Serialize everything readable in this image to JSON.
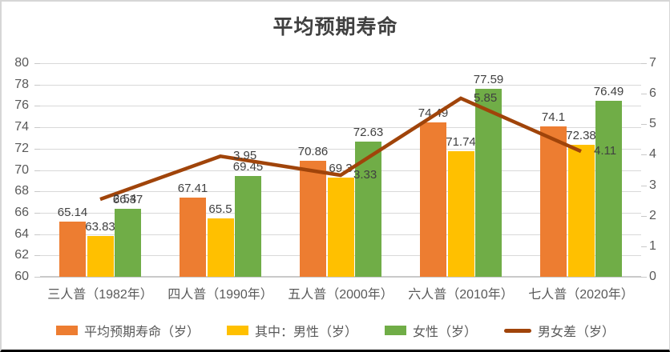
{
  "title": "平均预期寿命",
  "chart_data": {
    "type": "combo",
    "title": "平均预期寿命",
    "categories": [
      "三人普（1982年）",
      "四人普（1990年）",
      "五人普（2000年）",
      "六人普（2010年）",
      "七人普（2020年）"
    ],
    "series": [
      {
        "id": "avg-life",
        "name": "平均预期寿命（岁）",
        "type": "bar",
        "axis": "left",
        "color": "#ED7D31",
        "values": [
          65.14,
          67.41,
          70.86,
          74.49,
          74.1
        ],
        "labels": [
          "65.14",
          "67.41",
          "70.86",
          "74.49",
          "74.1"
        ]
      },
      {
        "id": "male",
        "name": "其中：男性（岁）",
        "type": "bar",
        "axis": "left",
        "color": "#FFC000",
        "values": [
          63.83,
          65.5,
          69.3,
          71.74,
          72.38
        ],
        "labels": [
          "63.83",
          "65.5",
          "69.3",
          "71.74",
          "72.38"
        ]
      },
      {
        "id": "female",
        "name": "女性（岁）",
        "type": "bar",
        "axis": "left",
        "color": "#70AD47",
        "values": [
          66.37,
          69.45,
          72.63,
          77.59,
          76.49
        ],
        "labels": [
          "66.37",
          "69.45",
          "72.63",
          "77.59",
          "76.49"
        ]
      },
      {
        "id": "gap",
        "name": "男女差（岁）",
        "type": "line",
        "axis": "right",
        "color": "#A0440A",
        "values": [
          2.54,
          3.95,
          3.33,
          5.85,
          4.11
        ],
        "labels": [
          "2.54",
          "3.95",
          "3.33",
          "5.85",
          "4.11"
        ]
      }
    ],
    "left_axis": {
      "min": 60,
      "max": 80,
      "step": 2,
      "tick_labels": [
        "60",
        "62",
        "64",
        "66",
        "68",
        "70",
        "72",
        "74",
        "76",
        "78",
        "80"
      ]
    },
    "right_axis": {
      "min": 0,
      "max": 7,
      "step": 1,
      "tick_labels": [
        "0",
        "1",
        "2",
        "3",
        "4",
        "5",
        "6",
        "7"
      ]
    },
    "grid": true,
    "legend_position": "bottom",
    "colors": {
      "grid": "#D9D9D9",
      "axis_text": "#595959",
      "data_label_text": "#404040",
      "title_text": "#404040",
      "frame_border": "#D6D6D6",
      "bottom_rule": "#000000"
    }
  }
}
